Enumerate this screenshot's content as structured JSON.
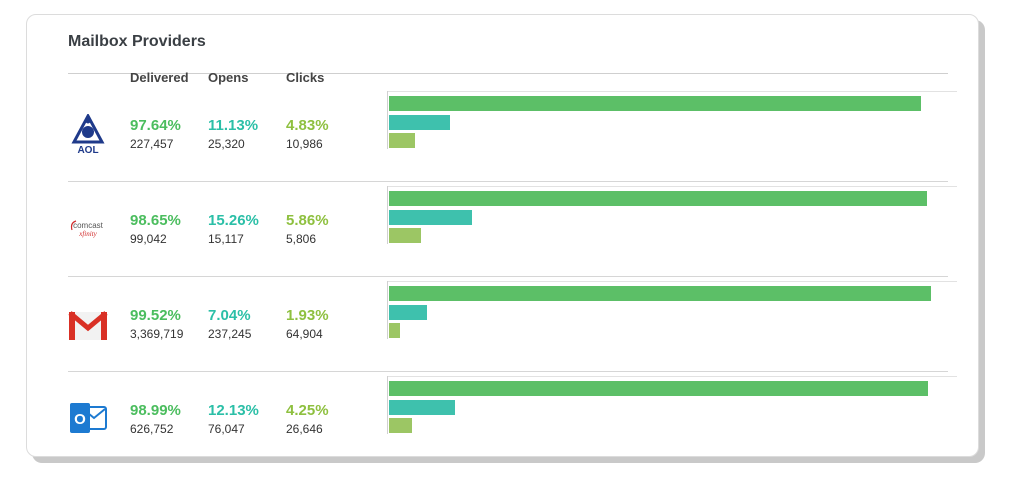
{
  "panel": {
    "title": "Mailbox Providers",
    "columns": {
      "delivered": "Delivered",
      "opens": "Opens",
      "clicks": "Clicks"
    }
  },
  "colors": {
    "delivered": "#5cbf67",
    "opens": "#3ec1ad",
    "clicks": "#9cc664"
  },
  "providers": [
    {
      "name": "AOL",
      "icon": "aol-logo-icon",
      "logo_text": "AOL",
      "delivered_pct": "97.64%",
      "delivered_count": "227,457",
      "opens_pct": "11.13%",
      "opens_count": "25,320",
      "clicks_pct": "4.83%",
      "clicks_count": "10,986",
      "bars": {
        "delivered": 0.9764,
        "opens": 0.1113,
        "clicks": 0.0483
      }
    },
    {
      "name": "Comcast Xfinity",
      "icon": "comcast-xfinity-logo-icon",
      "logo_text": "comcast",
      "logo_sub": "xfinity",
      "delivered_pct": "98.65%",
      "delivered_count": "99,042",
      "opens_pct": "15.26%",
      "opens_count": "15,117",
      "clicks_pct": "5.86%",
      "clicks_count": "5,806",
      "bars": {
        "delivered": 0.9865,
        "opens": 0.1526,
        "clicks": 0.0586
      }
    },
    {
      "name": "Gmail",
      "icon": "gmail-logo-icon",
      "delivered_pct": "99.52%",
      "delivered_count": "3,369,719",
      "opens_pct": "7.04%",
      "opens_count": "237,245",
      "clicks_pct": "1.93%",
      "clicks_count": "64,904",
      "bars": {
        "delivered": 0.9952,
        "opens": 0.0704,
        "clicks": 0.0193
      }
    },
    {
      "name": "Outlook",
      "icon": "outlook-logo-icon",
      "logo_text": "O",
      "delivered_pct": "98.99%",
      "delivered_count": "626,752",
      "opens_pct": "12.13%",
      "opens_count": "76,047",
      "clicks_pct": "4.25%",
      "clicks_count": "26,646",
      "bars": {
        "delivered": 0.9899,
        "opens": 0.1213,
        "clicks": 0.0425
      }
    }
  ]
}
